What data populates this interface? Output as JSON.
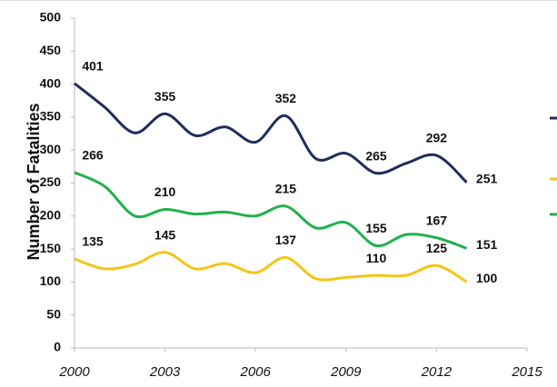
{
  "chart_data": {
    "type": "line",
    "ylabel": "Number of Fatalities",
    "x": [
      2000,
      2001,
      2002,
      2003,
      2004,
      2005,
      2006,
      2007,
      2008,
      2009,
      2010,
      2011,
      2012,
      2013
    ],
    "series": [
      {
        "color": "#1f2d5c",
        "values": [
          401,
          365,
          326,
          355,
          322,
          335,
          312,
          352,
          287,
          295,
          265,
          280,
          292,
          251
        ],
        "value_labels": [
          "401",
          null,
          null,
          "355",
          null,
          null,
          null,
          "352",
          null,
          null,
          "265",
          null,
          "292",
          "251"
        ]
      },
      {
        "color": "#f5c518",
        "values": [
          135,
          120,
          127,
          145,
          120,
          128,
          114,
          137,
          105,
          107,
          110,
          110,
          125,
          100
        ],
        "value_labels": [
          "135",
          null,
          null,
          "145",
          null,
          null,
          null,
          "137",
          null,
          null,
          "110",
          null,
          "125",
          "100"
        ]
      },
      {
        "color": "#22b14c",
        "values": [
          266,
          245,
          200,
          210,
          203,
          206,
          200,
          215,
          182,
          190,
          155,
          172,
          167,
          151
        ],
        "value_labels": [
          "266",
          null,
          null,
          "210",
          null,
          null,
          null,
          "215",
          null,
          null,
          "155",
          null,
          "167",
          "151"
        ]
      }
    ],
    "xlim": [
      2000,
      2015
    ],
    "xticks": [
      2000,
      2003,
      2006,
      2009,
      2012,
      2015
    ],
    "ylim": [
      0,
      500
    ],
    "yticks": [
      0,
      50,
      100,
      150,
      200,
      250,
      300,
      350,
      400,
      450,
      500
    ],
    "grid": false
  }
}
